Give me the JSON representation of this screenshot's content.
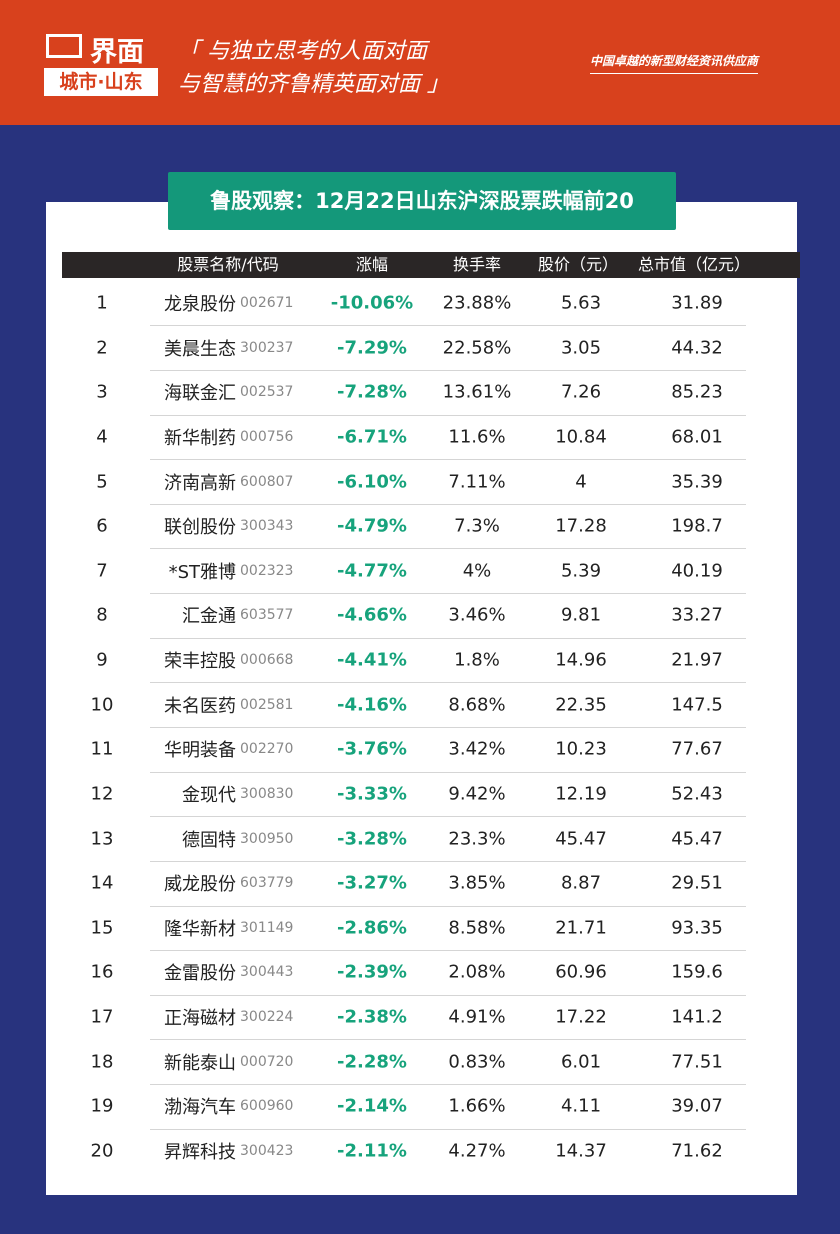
{
  "header": {
    "logo": "界面",
    "city": "城市·山东",
    "slogan_1": "「 与独立思考的人面对面",
    "slogan_2": "与智慧的齐鲁精英面对面 」",
    "tagline": "中国卓越的新型财经资讯供应商"
  },
  "title": "鲁股观察：12月22日山东沪深股票跌幅前20",
  "table": {
    "columns": [
      "股票名称/代码",
      "涨幅",
      "换手率",
      "股价（元）",
      "总市值（亿元）"
    ],
    "rows": [
      [
        "1",
        "龙泉股份",
        "002671",
        "-10.06%",
        "23.88%",
        "5.63",
        "31.89"
      ],
      [
        "2",
        "美晨生态",
        "300237",
        "-7.29%",
        "22.58%",
        "3.05",
        "44.32"
      ],
      [
        "3",
        "海联金汇",
        "002537",
        "-7.28%",
        "13.61%",
        "7.26",
        "85.23"
      ],
      [
        "4",
        "新华制药",
        "000756",
        "-6.71%",
        "11.6%",
        "10.84",
        "68.01"
      ],
      [
        "5",
        "济南高新",
        "600807",
        "-6.10%",
        "7.11%",
        "4",
        "35.39"
      ],
      [
        "6",
        "联创股份",
        "300343",
        "-4.79%",
        "7.3%",
        "17.28",
        "198.7"
      ],
      [
        "7",
        "*ST雅博",
        "002323",
        "-4.77%",
        "4%",
        "5.39",
        "40.19"
      ],
      [
        "8",
        "汇金通",
        "603577",
        "-4.66%",
        "3.46%",
        "9.81",
        "33.27"
      ],
      [
        "9",
        "荣丰控股",
        "000668",
        "-4.41%",
        "1.8%",
        "14.96",
        "21.97"
      ],
      [
        "10",
        "未名医药",
        "002581",
        "-4.16%",
        "8.68%",
        "22.35",
        "147.5"
      ],
      [
        "11",
        "华明装备",
        "002270",
        "-3.76%",
        "3.42%",
        "10.23",
        "77.67"
      ],
      [
        "12",
        "金现代",
        "300830",
        "-3.33%",
        "9.42%",
        "12.19",
        "52.43"
      ],
      [
        "13",
        "德固特",
        "300950",
        "-3.28%",
        "23.3%",
        "45.47",
        "45.47"
      ],
      [
        "14",
        "威龙股份",
        "603779",
        "-3.27%",
        "3.85%",
        "8.87",
        "29.51"
      ],
      [
        "15",
        "隆华新材",
        "301149",
        "-2.86%",
        "8.58%",
        "21.71",
        "93.35"
      ],
      [
        "16",
        "金雷股份",
        "300443",
        "-2.39%",
        "2.08%",
        "60.96",
        "159.6"
      ],
      [
        "17",
        "正海磁材",
        "300224",
        "-2.38%",
        "4.91%",
        "17.22",
        "141.2"
      ],
      [
        "18",
        "新能泰山",
        "000720",
        "-2.28%",
        "0.83%",
        "6.01",
        "77.51"
      ],
      [
        "19",
        "渤海汽车",
        "600960",
        "-2.14%",
        "1.66%",
        "4.11",
        "39.07"
      ],
      [
        "20",
        "昇辉科技",
        "300423",
        "-2.11%",
        "4.27%",
        "14.37",
        "71.62"
      ]
    ]
  }
}
